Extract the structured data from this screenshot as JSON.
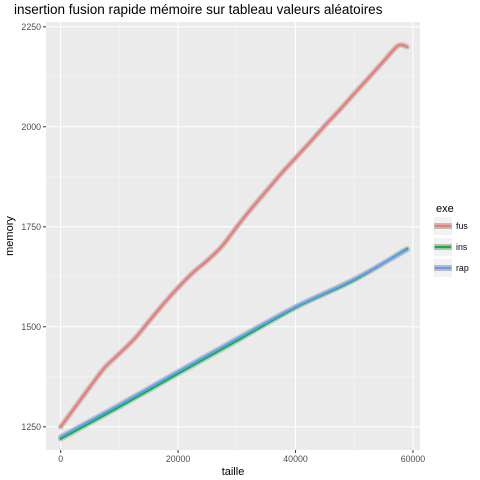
{
  "chart_data": {
    "type": "line",
    "title": "insertion fusion rapide mémoire sur tableau valeurs aléatoires",
    "xlabel": "taille",
    "ylabel": "memory",
    "xlim": [
      -2500,
      61200
    ],
    "ylim": [
      1192,
      2262
    ],
    "x_ticks": [
      0,
      20000,
      40000,
      60000
    ],
    "y_ticks": [
      1250,
      1500,
      1750,
      2000,
      2250
    ],
    "grid": true,
    "legend": {
      "title": "exe",
      "position": "right"
    },
    "series": [
      {
        "name": "fus",
        "color": "#F8766D",
        "x": [
          0,
          2500,
          5000,
          7500,
          10000,
          12500,
          15000,
          17500,
          20000,
          22500,
          25000,
          27500,
          30000,
          32500,
          35000,
          37500,
          40000,
          42500,
          45000,
          47500,
          50000,
          52500,
          55000,
          57500,
          59000
        ],
        "y": [
          1250,
          1300,
          1350,
          1398,
          1433,
          1469,
          1513,
          1557,
          1598,
          1635,
          1666,
          1702,
          1750,
          1796,
          1839,
          1882,
          1922,
          1962,
          2003,
          2042,
          2083,
          2123,
          2164,
          2203,
          2200
        ]
      },
      {
        "name": "ins",
        "color": "#00BA38",
        "x": [
          0,
          10000,
          20000,
          30000,
          40000,
          50000,
          59000
        ],
        "y": [
          1220,
          1300,
          1383,
          1465,
          1548,
          1617,
          1695
        ]
      },
      {
        "name": "rap",
        "color": "#619CFF",
        "x": [
          0,
          10000,
          20000,
          30000,
          40000,
          50000,
          59000
        ],
        "y": [
          1225,
          1305,
          1388,
          1470,
          1550,
          1619,
          1693
        ]
      }
    ]
  }
}
